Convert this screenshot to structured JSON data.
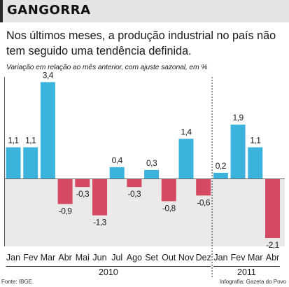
{
  "header": {
    "title": "GANGORRA",
    "subtitle": "Nos últimos meses, a produção industrial no país não tem seguido uma tendência definida.",
    "note": "Variação em relação ao mês anterior, com ajuste sazonal, em %"
  },
  "footer": {
    "source": "Fonte: IBGE.",
    "credit": "Infografia: Gazeta do Povo"
  },
  "colors": {
    "positive": "#3bb3dc",
    "negative": "#d64963",
    "title_bg": "#e4e4e4",
    "plot_bg": "#eaeaea"
  },
  "chart_data": {
    "type": "bar",
    "categories": [
      "Jan",
      "Fev",
      "Mar",
      "Abr",
      "Mai",
      "Jun",
      "Jul",
      "Ago",
      "Set",
      "Out",
      "Nov",
      "Dez",
      "Jan",
      "Fev",
      "Mar",
      "Abr"
    ],
    "values": [
      1.1,
      1.1,
      3.4,
      -0.9,
      -0.3,
      -1.3,
      0.4,
      -0.3,
      0.3,
      -0.8,
      1.4,
      -0.6,
      0.2,
      1.9,
      1.1,
      -2.1
    ],
    "value_labels": [
      "1,1",
      "1,1",
      "3,4",
      "-0,9",
      "-0,3",
      "-1,3",
      "0,4",
      "-0,3",
      "0,3",
      "-0,8",
      "1,4",
      "-0,6",
      "0,2",
      "1,9",
      "1,1",
      "-2,1"
    ],
    "year_groups": [
      {
        "label": "2010",
        "start": 0,
        "end": 11
      },
      {
        "label": "2011",
        "start": 12,
        "end": 15
      }
    ]
  }
}
